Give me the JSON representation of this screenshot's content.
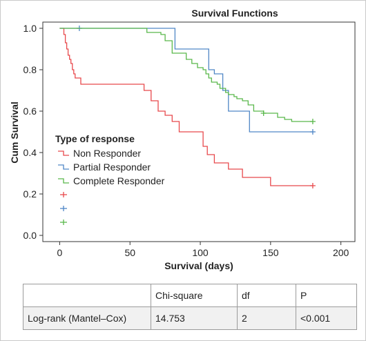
{
  "chart_data": {
    "type": "line",
    "title": "Survival Functions",
    "xlabel": "Survival (days)",
    "ylabel": "Cum Survival",
    "xlim": [
      -12,
      210
    ],
    "ylim": [
      -0.03,
      1.03
    ],
    "xticks": [
      "0",
      "50",
      "100",
      "150",
      "200"
    ],
    "xtick_values": [
      0,
      50,
      100,
      150,
      200
    ],
    "yticks": [
      "0.0",
      "0.2",
      "0.4",
      "0.6",
      "0.8",
      "1.0"
    ],
    "ytick_values": [
      0.0,
      0.2,
      0.4,
      0.6,
      0.8,
      1.0
    ],
    "grid": false,
    "legend": {
      "title": "Type of response",
      "placement": "left",
      "entries": [
        "Non Responder",
        "Partial Responder",
        "Complete Responder",
        "",
        "",
        ""
      ]
    },
    "series": [
      {
        "name": "Non Responder",
        "color": "#e8484b",
        "step": true,
        "points": [
          [
            0,
            1.0
          ],
          [
            3,
            0.97
          ],
          [
            4,
            0.93
          ],
          [
            5,
            0.9
          ],
          [
            6,
            0.87
          ],
          [
            7,
            0.85
          ],
          [
            8,
            0.83
          ],
          [
            9,
            0.8
          ],
          [
            10,
            0.78
          ],
          [
            11,
            0.76
          ],
          [
            15,
            0.73
          ],
          [
            50,
            0.73
          ],
          [
            60,
            0.7
          ],
          [
            65,
            0.65
          ],
          [
            70,
            0.6
          ],
          [
            75,
            0.58
          ],
          [
            80,
            0.55
          ],
          [
            85,
            0.5
          ],
          [
            100,
            0.5
          ],
          [
            102,
            0.43
          ],
          [
            105,
            0.39
          ],
          [
            110,
            0.35
          ],
          [
            120,
            0.32
          ],
          [
            130,
            0.28
          ],
          [
            150,
            0.24
          ],
          [
            180,
            0.24
          ]
        ],
        "censored": [
          [
            180,
            0.24
          ]
        ]
      },
      {
        "name": "Partial Responder",
        "color": "#4f86c6",
        "step": true,
        "points": [
          [
            0,
            1.0
          ],
          [
            80,
            1.0
          ],
          [
            82,
            0.9
          ],
          [
            104,
            0.9
          ],
          [
            106,
            0.8
          ],
          [
            108,
            0.8
          ],
          [
            110,
            0.78
          ],
          [
            114,
            0.78
          ],
          [
            116,
            0.7
          ],
          [
            118,
            0.7
          ],
          [
            120,
            0.6
          ],
          [
            130,
            0.6
          ],
          [
            135,
            0.5
          ],
          [
            180,
            0.5
          ]
        ],
        "censored": [
          [
            14,
            1.0
          ],
          [
            180,
            0.5
          ]
        ]
      },
      {
        "name": "Complete Responder",
        "color": "#59b84a",
        "step": true,
        "points": [
          [
            0,
            1.0
          ],
          [
            60,
            1.0
          ],
          [
            62,
            0.98
          ],
          [
            72,
            0.97
          ],
          [
            75,
            0.94
          ],
          [
            80,
            0.88
          ],
          [
            90,
            0.85
          ],
          [
            94,
            0.83
          ],
          [
            98,
            0.81
          ],
          [
            102,
            0.8
          ],
          [
            104,
            0.78
          ],
          [
            106,
            0.76
          ],
          [
            108,
            0.74
          ],
          [
            112,
            0.73
          ],
          [
            114,
            0.71
          ],
          [
            118,
            0.69
          ],
          [
            120,
            0.68
          ],
          [
            124,
            0.67
          ],
          [
            126,
            0.66
          ],
          [
            130,
            0.65
          ],
          [
            134,
            0.63
          ],
          [
            138,
            0.6
          ],
          [
            145,
            0.59
          ],
          [
            155,
            0.57
          ],
          [
            160,
            0.56
          ],
          [
            165,
            0.55
          ],
          [
            180,
            0.55
          ]
        ],
        "censored": [
          [
            145,
            0.59
          ],
          [
            180,
            0.55
          ]
        ]
      }
    ]
  },
  "table": {
    "headers": [
      "",
      "Chi-square",
      "df",
      "P"
    ],
    "rows": [
      [
        "Log-rank (Mantel–Cox)",
        "14.753",
        "2",
        "<0.001"
      ]
    ]
  }
}
